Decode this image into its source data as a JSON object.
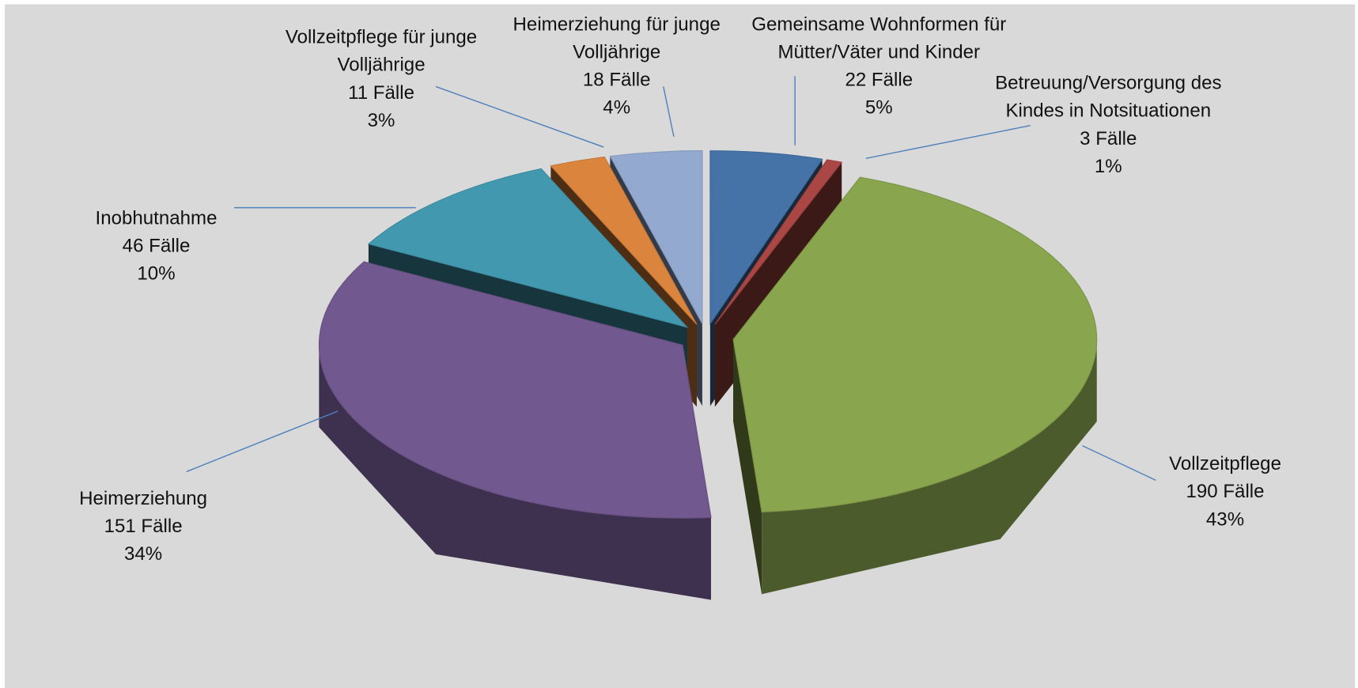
{
  "chart_data": {
    "type": "pie",
    "categories": [
      "Gemeinsame Wohnformen für Mütter/Väter und Kinder",
      "Betreuung/Versorgung des Kindes in Notsituationen",
      "Vollzeitpflege",
      "Heimerziehung",
      "Inobhutnahme",
      "Vollzeitpflege für junge Volljährige",
      "Heimerziehung für junge Volljährige"
    ],
    "values": [
      22,
      3,
      190,
      151,
      46,
      11,
      18
    ],
    "value_labels": [
      "22 Fälle",
      "3 Fälle",
      "190 Fälle",
      "151 Fälle",
      "46 Fälle",
      "11 Fälle",
      "18 Fälle"
    ],
    "shares": [
      5,
      1,
      43,
      34,
      10,
      3,
      4
    ],
    "share_labels": [
      "5%",
      "1%",
      "43%",
      "34%",
      "10%",
      "3%",
      "4%"
    ],
    "colors": [
      "#4572a7",
      "#aa4643",
      "#89a54e",
      "#71588f",
      "#4198af",
      "#db843d",
      "#93a9cf"
    ]
  }
}
